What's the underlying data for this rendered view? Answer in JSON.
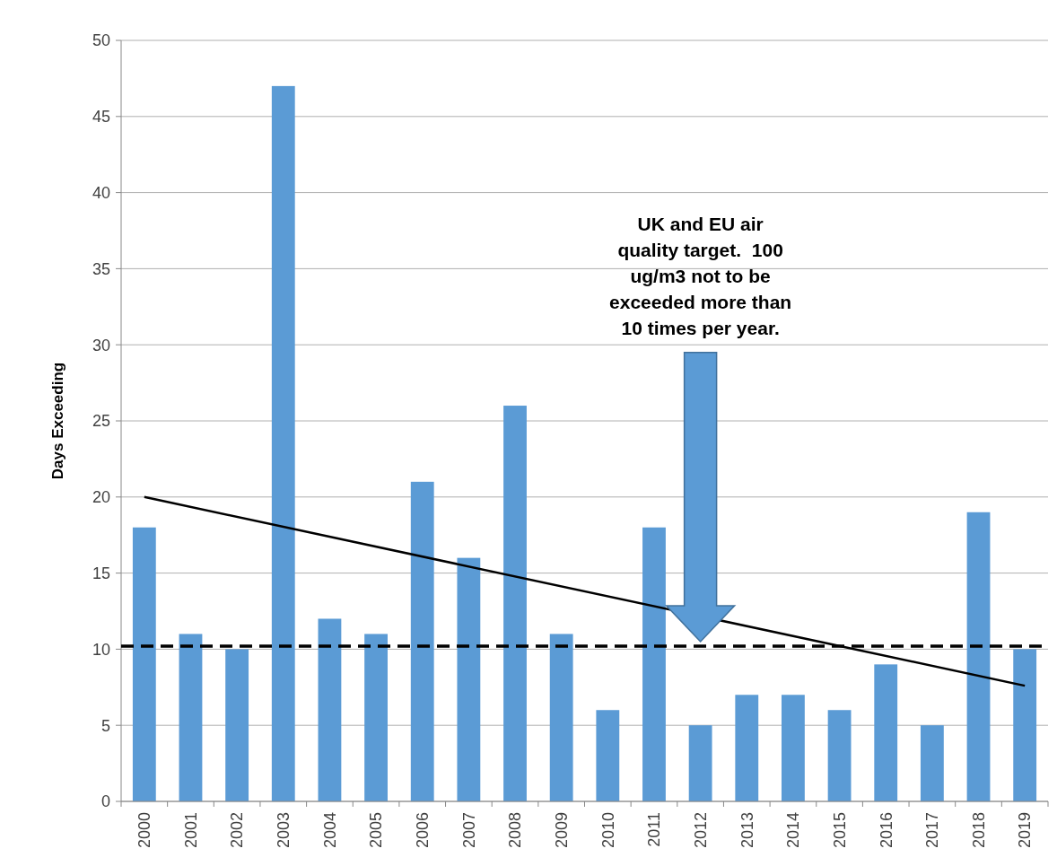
{
  "chart_data": {
    "type": "bar",
    "ylabel": "Days Exceeding",
    "categories": [
      "2000",
      "2001",
      "2002",
      "2003",
      "2004",
      "2005",
      "2006",
      "2007",
      "2008",
      "2009",
      "2010",
      "2011",
      "2012",
      "2013",
      "2014",
      "2015",
      "2016",
      "2017",
      "2018",
      "2019"
    ],
    "series": [
      {
        "color": "#5b9bd5",
        "values": [
          18,
          11,
          10,
          47,
          12,
          11,
          21,
          16,
          26,
          11,
          6,
          18,
          5,
          7,
          7,
          6,
          9,
          5,
          19,
          10
        ]
      },
      {
        "type": "line",
        "color": "#000000",
        "values": [
          20,
          null,
          null,
          null,
          null,
          null,
          null,
          null,
          null,
          null,
          null,
          null,
          null,
          null,
          null,
          null,
          null,
          null,
          null,
          7.6
        ]
      }
    ],
    "ylim": [
      0,
      50
    ],
    "yticks": [
      0,
      5,
      10,
      15,
      20,
      25,
      30,
      35,
      40,
      45,
      50
    ],
    "grid": "y",
    "ref_lines": [
      {
        "axis": "y",
        "value": 10.2,
        "color": "#000000",
        "line_style": "dashed"
      }
    ],
    "annotations": [
      "UK and EU air quality target.  100 ug/m3 not to be exceeded more than 10 times per year."
    ]
  }
}
